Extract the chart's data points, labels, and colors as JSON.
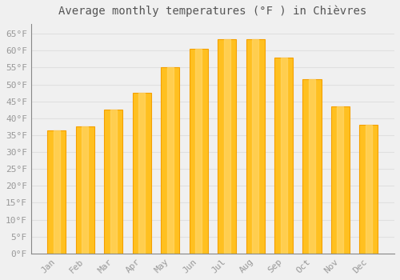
{
  "title": "Average monthly temperatures (°F ) in Chièvres",
  "months": [
    "Jan",
    "Feb",
    "Mar",
    "Apr",
    "May",
    "Jun",
    "Jul",
    "Aug",
    "Sep",
    "Oct",
    "Nov",
    "Dec"
  ],
  "values": [
    36.5,
    37.5,
    42.5,
    47.5,
    55.0,
    60.5,
    63.5,
    63.5,
    58.0,
    51.5,
    43.5,
    38.0
  ],
  "bar_color_main": "#FFC020",
  "bar_color_light": "#FFD870",
  "bar_color_edge": "#F5A000",
  "background_color": "#F0F0F0",
  "grid_color": "#E0E0E0",
  "ylim": [
    0,
    68
  ],
  "yticks": [
    0,
    5,
    10,
    15,
    20,
    25,
    30,
    35,
    40,
    45,
    50,
    55,
    60,
    65
  ],
  "ytick_labels": [
    "0°F",
    "5°F",
    "10°F",
    "15°F",
    "20°F",
    "25°F",
    "30°F",
    "35°F",
    "40°F",
    "45°F",
    "50°F",
    "55°F",
    "60°F",
    "65°F"
  ],
  "title_fontsize": 10,
  "tick_fontsize": 8,
  "font_color": "#999999",
  "title_color": "#555555"
}
